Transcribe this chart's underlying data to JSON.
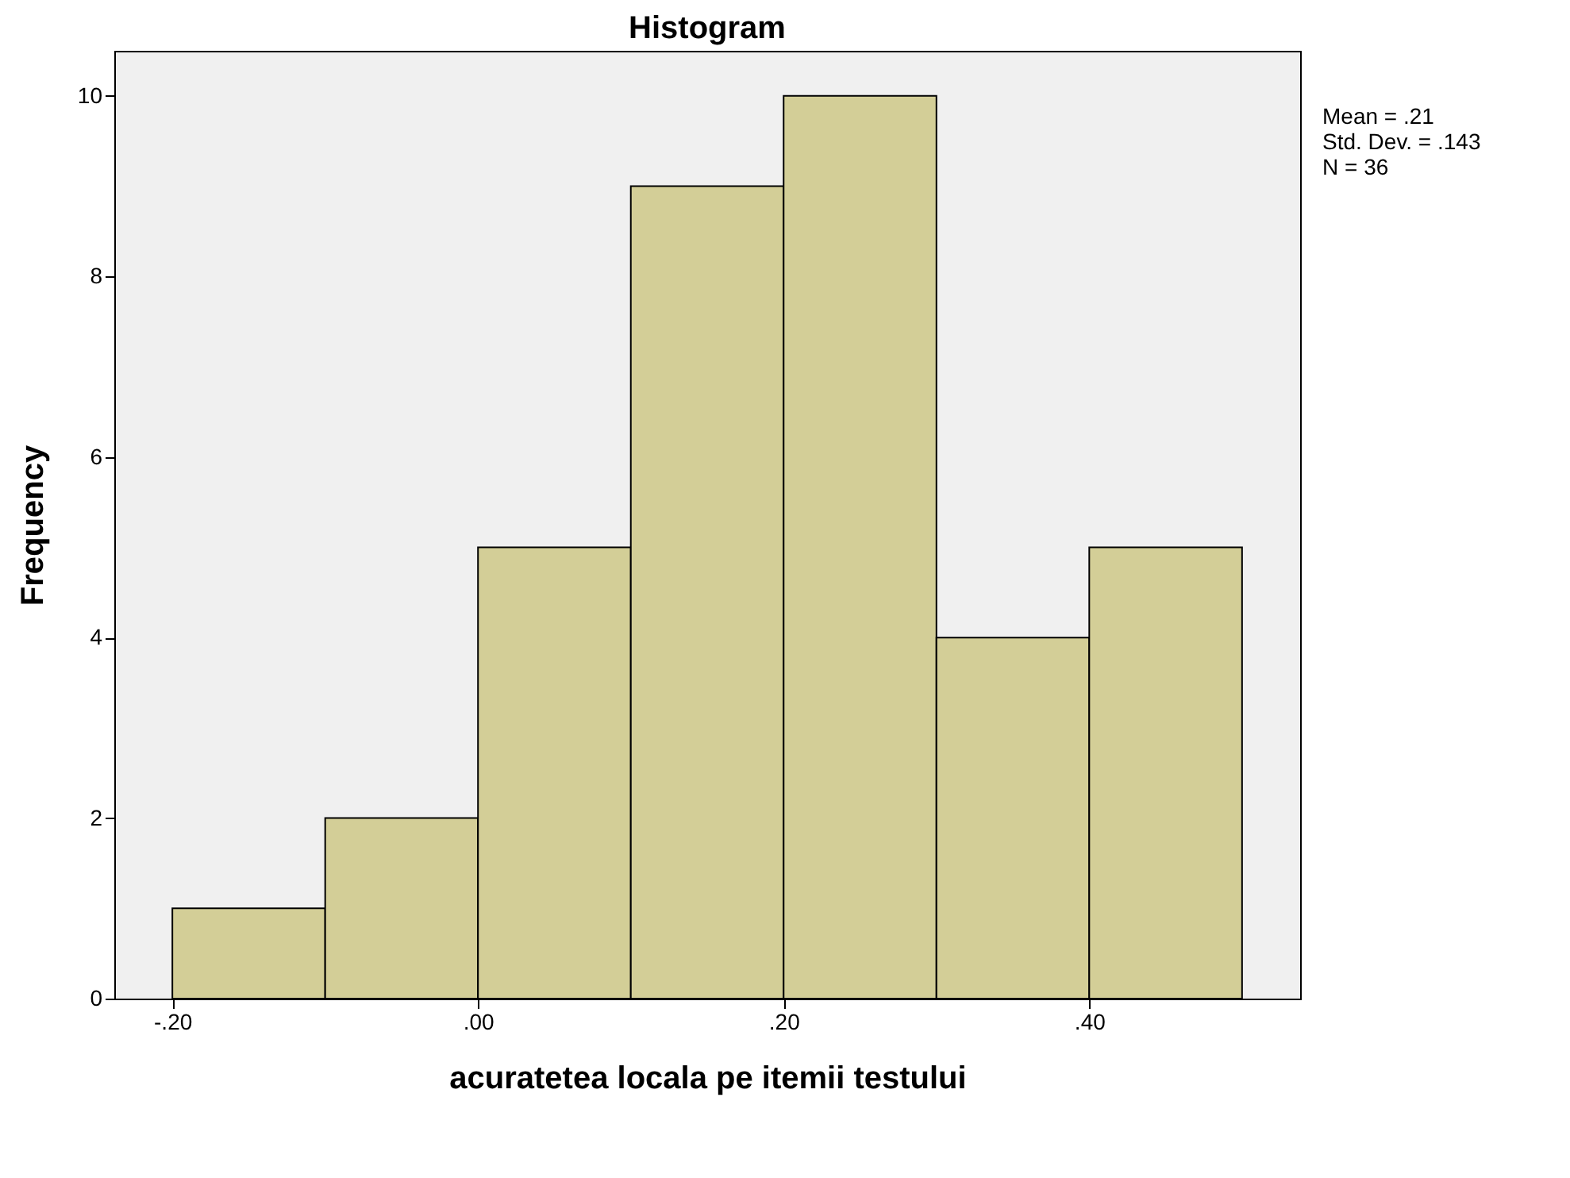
{
  "chart_data": {
    "type": "histogram",
    "title": "Histogram",
    "xlabel": "acuratetea locala pe itemii testului",
    "ylabel": "Frequency",
    "bins": [
      -0.2,
      -0.1,
      0.0,
      0.1,
      0.2,
      0.3,
      0.4,
      0.5
    ],
    "values": [
      1,
      2,
      5,
      9,
      10,
      4,
      5
    ],
    "color": "#d3ce97",
    "xlim": [
      -0.238,
      0.538
    ],
    "xticks": [
      {
        "value": -0.2,
        "label": "-.20"
      },
      {
        "value": 0.0,
        "label": ".00"
      },
      {
        "value": 0.2,
        "label": ".20"
      },
      {
        "value": 0.4,
        "label": ".40"
      }
    ],
    "ylim": [
      0,
      10.5
    ],
    "yticks": [
      0,
      2,
      4,
      6,
      8,
      10
    ],
    "grid": false,
    "annotations": [
      "Mean = .21",
      "Std. Dev. = .143",
      "N = 36"
    ]
  }
}
